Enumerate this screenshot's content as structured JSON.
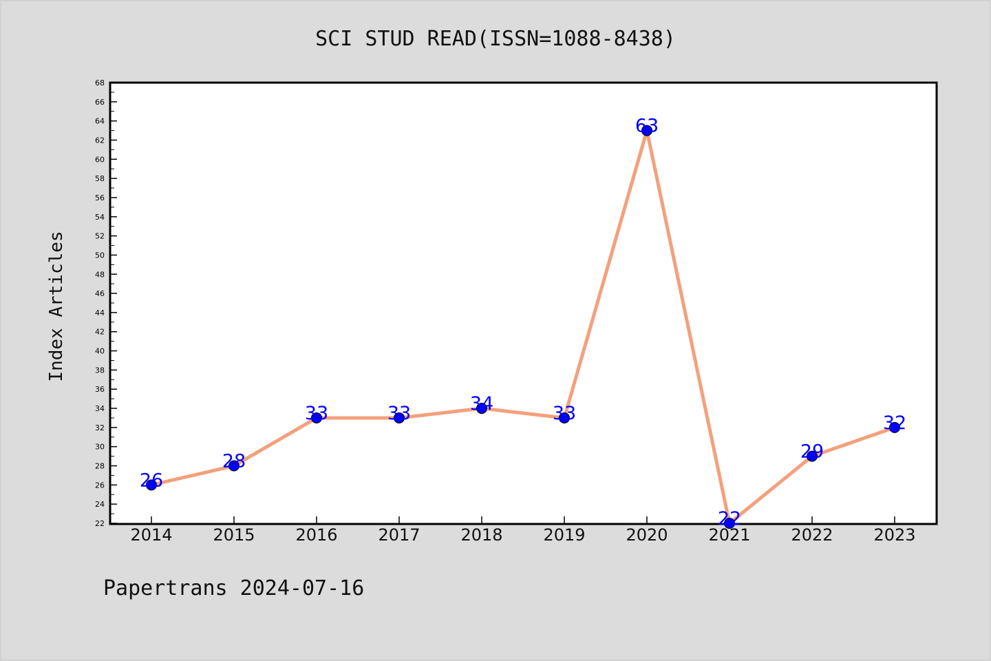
{
  "chart_data": {
    "type": "line",
    "title": "SCI STUD READ(ISSN=1088-8438)",
    "xlabel": "",
    "ylabel": "Index Articles",
    "categories": [
      "2014",
      "2015",
      "2016",
      "2017",
      "2018",
      "2019",
      "2020",
      "2021",
      "2022",
      "2023"
    ],
    "series": [
      {
        "values": [
          26,
          28,
          33,
          33,
          34,
          33,
          63,
          22,
          29,
          32
        ]
      }
    ],
    "ylim": [
      22,
      68
    ],
    "ytick_step": 2,
    "grid": false,
    "legend": "none",
    "data_labels": true,
    "line_color": "#f4a07c",
    "marker_color": "#0000ff",
    "label_color": "#0000ff"
  },
  "footer": "Papertrans 2024-07-16"
}
